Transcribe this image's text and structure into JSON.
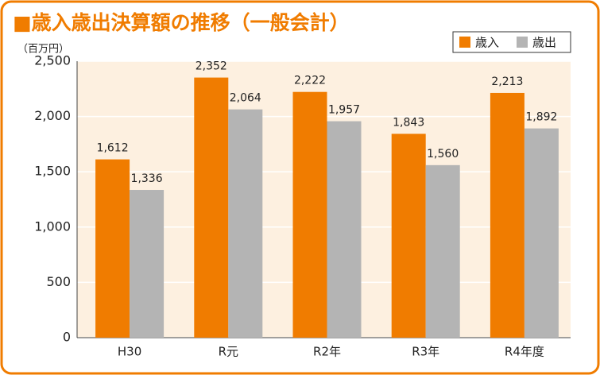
{
  "chart_data": {
    "type": "bar",
    "title": "■歳入歳出決算額の推移（一般会計）",
    "y_axis_label": "（百万円）",
    "categories": [
      "H30",
      "R元",
      "R2年",
      "R3年",
      "R4年度"
    ],
    "series": [
      {
        "name": "歳入",
        "color": "#f07c00",
        "values": [
          1612,
          2352,
          2222,
          1843,
          2213
        ],
        "value_labels": [
          "1,612",
          "2,352",
          "2,222",
          "1,843",
          "2,213"
        ]
      },
      {
        "name": "歳出",
        "color": "#b4b4b4",
        "values": [
          1336,
          2064,
          1957,
          1560,
          1892
        ],
        "value_labels": [
          "1,336",
          "2,064",
          "1,957",
          "1,560",
          "1,892"
        ]
      }
    ],
    "ylim": [
      0,
      2500
    ],
    "yticks": [
      0,
      500,
      {
        "value": 1000,
        "label": "1,000"
      },
      {
        "value": 1500,
        "label": "1,500"
      },
      {
        "value": 2000,
        "label": "2,000"
      },
      {
        "value": 2500,
        "label": "2,500"
      }
    ],
    "grid": true,
    "legend": "top-right"
  }
}
